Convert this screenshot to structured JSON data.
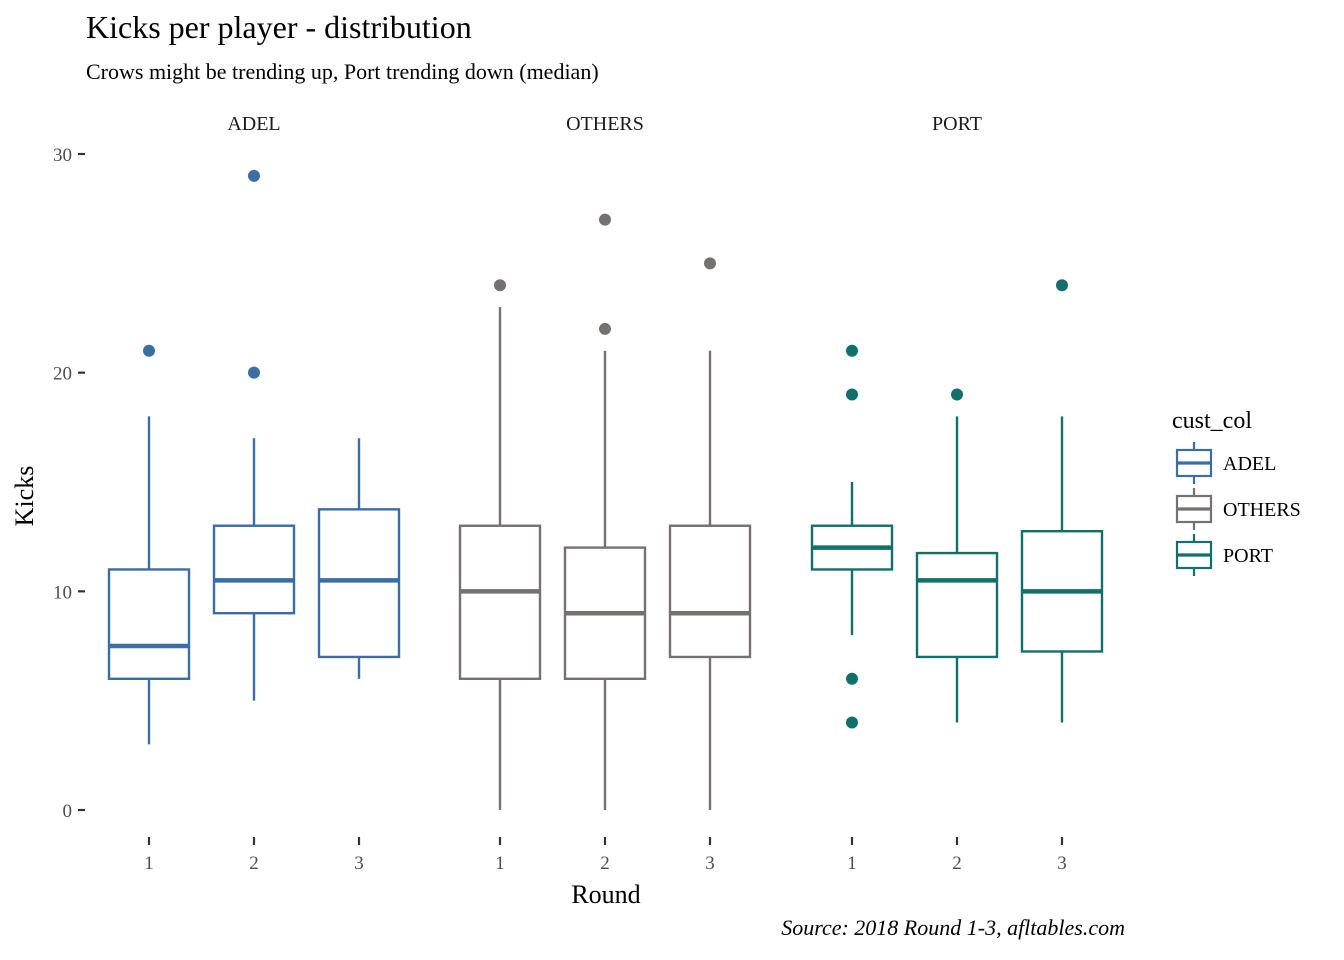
{
  "chart_data": {
    "type": "boxplot",
    "title": "Kicks per player - distribution",
    "subtitle": "Crows might be trending up, Port trending down (median)",
    "caption": "Source: 2018 Round 1-3, afltables.com",
    "xlabel": "Round",
    "ylabel": "Kicks",
    "ylim": [
      0,
      30
    ],
    "y_ticks": [
      "0",
      "10",
      "20",
      "30"
    ],
    "grid": false,
    "legend": {
      "title": "cust_col",
      "position": "right",
      "entries": [
        "ADEL",
        "OTHERS",
        "PORT"
      ]
    },
    "colors": {
      "ADEL": "#3a6ea5",
      "OTHERS": "#767171",
      "PORT": "#11706b"
    },
    "facets": [
      {
        "name": "ADEL",
        "color_key": "ADEL",
        "boxes": [
          {
            "round": "1",
            "lower_whisker": 3,
            "q1": 6,
            "median": 7.5,
            "q3": 11,
            "upper_whisker": 18,
            "outliers": [
              21
            ]
          },
          {
            "round": "2",
            "lower_whisker": 5,
            "q1": 9,
            "median": 10.5,
            "q3": 13,
            "upper_whisker": 17,
            "outliers": [
              20,
              29
            ]
          },
          {
            "round": "3",
            "lower_whisker": 6,
            "q1": 7,
            "median": 10.5,
            "q3": 13.75,
            "upper_whisker": 17,
            "outliers": []
          }
        ]
      },
      {
        "name": "OTHERS",
        "color_key": "OTHERS",
        "boxes": [
          {
            "round": "1",
            "lower_whisker": 0,
            "q1": 6,
            "median": 10,
            "q3": 13,
            "upper_whisker": 23,
            "outliers": [
              24
            ]
          },
          {
            "round": "2",
            "lower_whisker": 0,
            "q1": 6,
            "median": 9,
            "q3": 12,
            "upper_whisker": 21,
            "outliers": [
              22,
              27
            ]
          },
          {
            "round": "3",
            "lower_whisker": 0,
            "q1": 7,
            "median": 9,
            "q3": 13,
            "upper_whisker": 21,
            "outliers": [
              25
            ]
          }
        ]
      },
      {
        "name": "PORT",
        "color_key": "PORT",
        "boxes": [
          {
            "round": "1",
            "lower_whisker": 8,
            "q1": 11,
            "median": 12,
            "q3": 13,
            "upper_whisker": 15,
            "outliers": [
              4,
              6,
              19,
              21
            ]
          },
          {
            "round": "2",
            "lower_whisker": 4,
            "q1": 7,
            "median": 10.5,
            "q3": 11.75,
            "upper_whisker": 18,
            "outliers": [
              19
            ]
          },
          {
            "round": "3",
            "lower_whisker": 4,
            "q1": 7.25,
            "median": 10,
            "q3": 12.75,
            "upper_whisker": 18,
            "outliers": [
              24
            ]
          }
        ]
      }
    ]
  }
}
